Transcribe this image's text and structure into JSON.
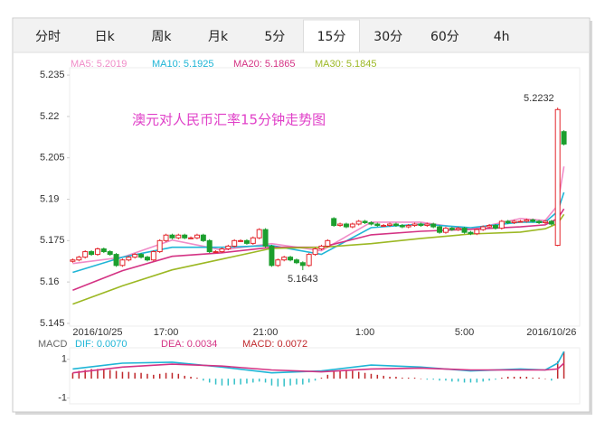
{
  "tabs": [
    "分时",
    "日k",
    "周k",
    "月k",
    "5分",
    "15分",
    "30分",
    "60分",
    "4h"
  ],
  "active_tab": 5,
  "chart_data": [
    {
      "type": "candlestick",
      "title": "澳元对人民币汇率15分钟走势图",
      "categories": [
        null,
        null,
        null,
        null,
        "2016/10/25",
        null,
        null,
        null,
        null,
        null,
        null,
        null,
        null,
        null,
        null,
        "17:00",
        null,
        null,
        null,
        null,
        null,
        null,
        null,
        null,
        null,
        null,
        null,
        null,
        null,
        null,
        null,
        "21:00",
        null,
        null,
        null,
        null,
        null,
        null,
        null,
        null,
        null,
        null,
        null,
        null,
        null,
        null,
        null,
        "1:00",
        null,
        null,
        null,
        null,
        null,
        null,
        null,
        null,
        null,
        null,
        null,
        null,
        null,
        null,
        null,
        "5:00",
        null,
        null,
        null,
        null,
        null,
        null,
        null,
        null,
        null,
        null,
        null,
        null,
        null,
        "2016/10/26",
        null,
        null
      ],
      "open": [
        5.1675,
        5.168,
        5.169,
        5.171,
        5.17,
        5.172,
        5.171,
        5.17,
        5.166,
        5.168,
        5.169,
        5.17,
        5.169,
        5.168,
        5.171,
        5.175,
        5.177,
        5.176,
        5.177,
        5.176,
        5.176,
        5.177,
        5.175,
        5.171,
        5.171,
        5.172,
        5.173,
        5.175,
        5.175,
        5.174,
        5.176,
        5.179,
        5.173,
        5.166,
        5.168,
        5.169,
        5.168,
        5.167,
        5.166,
        5.17,
        5.172,
        5.173,
        5.183,
        5.1805,
        5.181,
        5.18,
        5.181,
        5.182,
        5.1815,
        5.181,
        5.1805,
        5.1805,
        5.181,
        5.1805,
        5.18,
        5.1805,
        5.181,
        5.1805,
        5.181,
        5.18,
        5.178,
        5.1795,
        5.179,
        5.1795,
        5.178,
        5.1775,
        5.179,
        5.18,
        5.1805,
        5.1795,
        5.182,
        5.1815,
        5.182,
        5.182,
        5.1825,
        5.182,
        5.1815,
        5.182,
        5.1733,
        5.2145
      ],
      "high": [
        5.1685,
        5.1695,
        5.1715,
        5.1715,
        5.1725,
        5.1725,
        5.1715,
        5.1705,
        5.1685,
        5.1695,
        5.1705,
        5.1705,
        5.1695,
        5.1715,
        5.1755,
        5.1775,
        5.1775,
        5.1775,
        5.1775,
        5.1765,
        5.1775,
        5.1775,
        5.1755,
        5.1715,
        5.1725,
        5.1735,
        5.1755,
        5.1755,
        5.1755,
        5.1765,
        5.1795,
        5.1795,
        5.1735,
        5.1685,
        5.1695,
        5.1695,
        5.1685,
        5.1675,
        5.1705,
        5.1725,
        5.1735,
        5.1755,
        5.1835,
        5.1815,
        5.1815,
        5.1815,
        5.1825,
        5.1825,
        5.182,
        5.1815,
        5.181,
        5.1815,
        5.1815,
        5.181,
        5.181,
        5.1815,
        5.1815,
        5.1815,
        5.1815,
        5.1805,
        5.18,
        5.18,
        5.18,
        5.18,
        5.1785,
        5.1795,
        5.1805,
        5.181,
        5.181,
        5.1825,
        5.1825,
        5.1825,
        5.1825,
        5.183,
        5.183,
        5.1825,
        5.1825,
        5.1825,
        5.2232,
        5.215
      ],
      "low": [
        5.167,
        5.1675,
        5.1685,
        5.1695,
        5.1695,
        5.1705,
        5.1695,
        5.1655,
        5.1655,
        5.1675,
        5.1685,
        5.1685,
        5.1675,
        5.1675,
        5.1705,
        5.1745,
        5.1755,
        5.1755,
        5.1755,
        5.1755,
        5.1755,
        5.1745,
        5.1705,
        5.1705,
        5.1705,
        5.1715,
        5.1725,
        5.1745,
        5.1735,
        5.1735,
        5.1755,
        5.1725,
        5.1655,
        5.1655,
        5.1675,
        5.1675,
        5.1665,
        5.1643,
        5.1655,
        5.1695,
        5.1715,
        5.1725,
        5.18,
        5.18,
        5.1795,
        5.1795,
        5.1805,
        5.181,
        5.1805,
        5.18,
        5.18,
        5.18,
        5.18,
        5.1795,
        5.1795,
        5.18,
        5.18,
        5.18,
        5.1795,
        5.1775,
        5.1775,
        5.1785,
        5.1785,
        5.1775,
        5.177,
        5.177,
        5.1785,
        5.1795,
        5.179,
        5.179,
        5.181,
        5.181,
        5.1815,
        5.1815,
        5.1815,
        5.181,
        5.181,
        5.1805,
        5.173,
        5.2095
      ],
      "close": [
        5.168,
        5.169,
        5.171,
        5.17,
        5.172,
        5.171,
        5.17,
        5.166,
        5.168,
        5.169,
        5.17,
        5.169,
        5.168,
        5.171,
        5.175,
        5.177,
        5.176,
        5.177,
        5.176,
        5.176,
        5.177,
        5.175,
        5.171,
        5.171,
        5.172,
        5.173,
        5.175,
        5.175,
        5.174,
        5.176,
        5.179,
        5.173,
        5.166,
        5.168,
        5.169,
        5.168,
        5.167,
        5.166,
        5.17,
        5.172,
        5.173,
        5.175,
        5.1805,
        5.181,
        5.18,
        5.181,
        5.182,
        5.1815,
        5.181,
        5.1805,
        5.1805,
        5.181,
        5.1805,
        5.18,
        5.1805,
        5.181,
        5.1805,
        5.181,
        5.18,
        5.178,
        5.1795,
        5.179,
        5.1795,
        5.178,
        5.1775,
        5.179,
        5.18,
        5.1805,
        5.1795,
        5.182,
        5.1815,
        5.182,
        5.182,
        5.1825,
        5.182,
        5.1815,
        5.182,
        5.181,
        5.2225,
        5.21
      ],
      "up_color": "#e3262c",
      "down_color": "#1c9f2e",
      "high_label_index": 78,
      "low_label_index": 37,
      "ylim": [
        5.144,
        5.237
      ],
      "yticks": [
        5.235,
        5.22,
        5.205,
        5.19,
        5.175,
        5.16,
        5.145
      ],
      "series": [
        {
          "name": "MA5",
          "legend_label": "MA5: 5.2019",
          "color": "#f08cc8",
          "x": [
            0,
            8,
            16,
            24,
            32,
            40,
            48,
            56,
            64,
            72,
            76,
            78,
            79
          ],
          "values": [
            5.1667,
            5.169,
            5.1752,
            5.1716,
            5.1739,
            5.1713,
            5.1817,
            5.1817,
            5.1791,
            5.183,
            5.1823,
            5.1878,
            5.2019
          ]
        },
        {
          "name": "MA10",
          "legend_label": "MA10: 5.1925",
          "color": "#1fb5d6",
          "x": [
            0,
            8,
            16,
            24,
            32,
            40,
            48,
            56,
            64,
            72,
            76,
            78,
            79
          ],
          "values": [
            5.1635,
            5.169,
            5.1726,
            5.1726,
            5.1732,
            5.17,
            5.1797,
            5.181,
            5.1797,
            5.1817,
            5.1817,
            5.1856,
            5.1925
          ]
        },
        {
          "name": "MA20",
          "legend_label": "MA20: 5.1865",
          "color": "#d43384",
          "x": [
            0,
            8,
            16,
            24,
            32,
            40,
            48,
            56,
            64,
            72,
            76,
            78,
            79
          ],
          "values": [
            5.157,
            5.1641,
            5.1693,
            5.1706,
            5.1726,
            5.1726,
            5.1771,
            5.1784,
            5.1791,
            5.18,
            5.1807,
            5.183,
            5.1865
          ]
        },
        {
          "name": "MA30",
          "legend_label": "MA30: 5.1845",
          "color": "#9cb824",
          "x": [
            0,
            8,
            16,
            24,
            32,
            40,
            48,
            56,
            64,
            72,
            76,
            78,
            79
          ],
          "values": [
            5.152,
            5.1586,
            5.1644,
            5.1683,
            5.1722,
            5.1726,
            5.1739,
            5.1758,
            5.1774,
            5.1781,
            5.1793,
            5.1812,
            5.1845
          ]
        }
      ]
    },
    {
      "type": "macd",
      "indicator": "MACD",
      "ylim": [
        -1.3,
        1.5
      ],
      "yticks": [
        1,
        -1
      ],
      "up_color": "#c0282c",
      "down_color": "#33c0c8",
      "values": [
        0.3,
        0.4,
        0.45,
        0.5,
        0.5,
        0.5,
        0.45,
        0.4,
        0.35,
        0.35,
        0.3,
        0.3,
        0.25,
        0.2,
        0.25,
        0.3,
        0.3,
        0.25,
        0.15,
        0.1,
        0.05,
        -0.1,
        -0.2,
        -0.3,
        -0.35,
        -0.35,
        -0.3,
        -0.3,
        -0.25,
        -0.2,
        -0.15,
        -0.2,
        -0.35,
        -0.4,
        -0.4,
        -0.35,
        -0.3,
        -0.3,
        -0.2,
        -0.1,
        0.05,
        0.2,
        0.4,
        0.45,
        0.45,
        0.4,
        0.35,
        0.3,
        0.25,
        0.2,
        0.15,
        0.1,
        0.1,
        0.05,
        0.05,
        0.05,
        0.0,
        -0.05,
        -0.05,
        -0.1,
        -0.1,
        -0.15,
        -0.15,
        -0.2,
        -0.2,
        -0.2,
        -0.15,
        -0.1,
        -0.05,
        0.05,
        0.1,
        0.1,
        0.1,
        0.1,
        0.05,
        0.05,
        0.0,
        -0.1,
        0.9,
        1.4
      ],
      "series": [
        {
          "name": "DIF",
          "legend_label": "DIF: 0.0070",
          "color": "#1fb5d6",
          "x": [
            0,
            8,
            16,
            24,
            32,
            40,
            48,
            56,
            64,
            72,
            76,
            78,
            79
          ],
          "values": [
            0.5,
            0.8,
            0.85,
            0.6,
            0.3,
            0.4,
            0.7,
            0.6,
            0.4,
            0.5,
            0.45,
            0.8,
            1.4
          ]
        },
        {
          "name": "DEA",
          "legend_label": "DEA: 0.0034",
          "color": "#d43384",
          "x": [
            0,
            8,
            16,
            24,
            32,
            40,
            48,
            56,
            64,
            72,
            76,
            78,
            79
          ],
          "values": [
            0.3,
            0.6,
            0.75,
            0.65,
            0.45,
            0.35,
            0.5,
            0.55,
            0.45,
            0.45,
            0.45,
            0.5,
            0.8
          ]
        }
      ],
      "macd_label": "MACD: 0.0072",
      "macd_label_color": "#c0282c"
    }
  ]
}
